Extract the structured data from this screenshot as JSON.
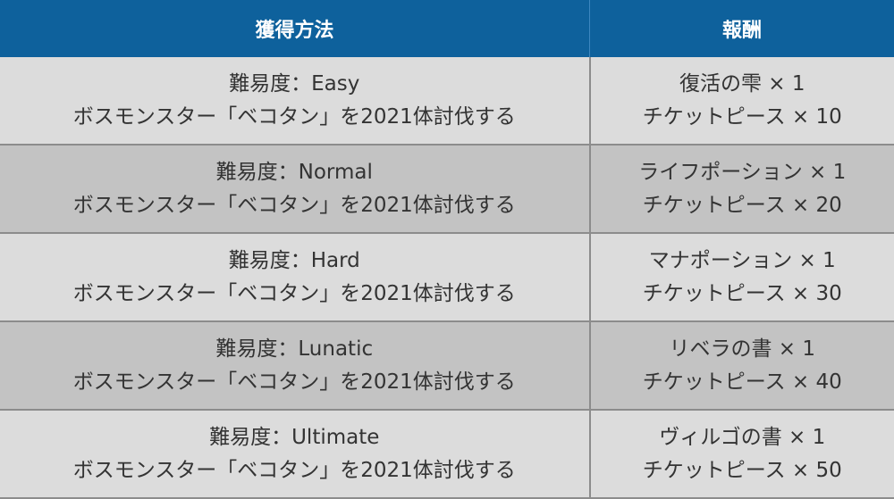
{
  "headers": [
    "獲得方法",
    "報酬"
  ],
  "rows": [
    {
      "method": [
        "難易度：Easy",
        "ボスモンスター「ベコタン」を2021体討伐する"
      ],
      "reward": [
        "復活の雫 × 1",
        "チケットピース × 10"
      ]
    },
    {
      "method": [
        "難易度：Normal",
        "ボスモンスター「ベコタン」を2021体討伐する"
      ],
      "reward": [
        "ライフポーション × 1",
        "チケットピース × 20"
      ]
    },
    {
      "method": [
        "難易度：Hard",
        "ボスモンスター「ベコタン」を2021体討伐する"
      ],
      "reward": [
        "マナポーション × 1",
        "チケットピース × 30"
      ]
    },
    {
      "method": [
        "難易度：Lunatic",
        "ボスモンスター「ベコタン」を2021体討伐する"
      ],
      "reward": [
        "リベラの書 × 1",
        "チケットピース × 40"
      ]
    },
    {
      "method": [
        "難易度：Ultimate",
        "ボスモンスター「ベコタン」を2021体討伐する"
      ],
      "reward": [
        "ヴィルゴの書 × 1",
        "チケットピース × 50"
      ]
    }
  ]
}
